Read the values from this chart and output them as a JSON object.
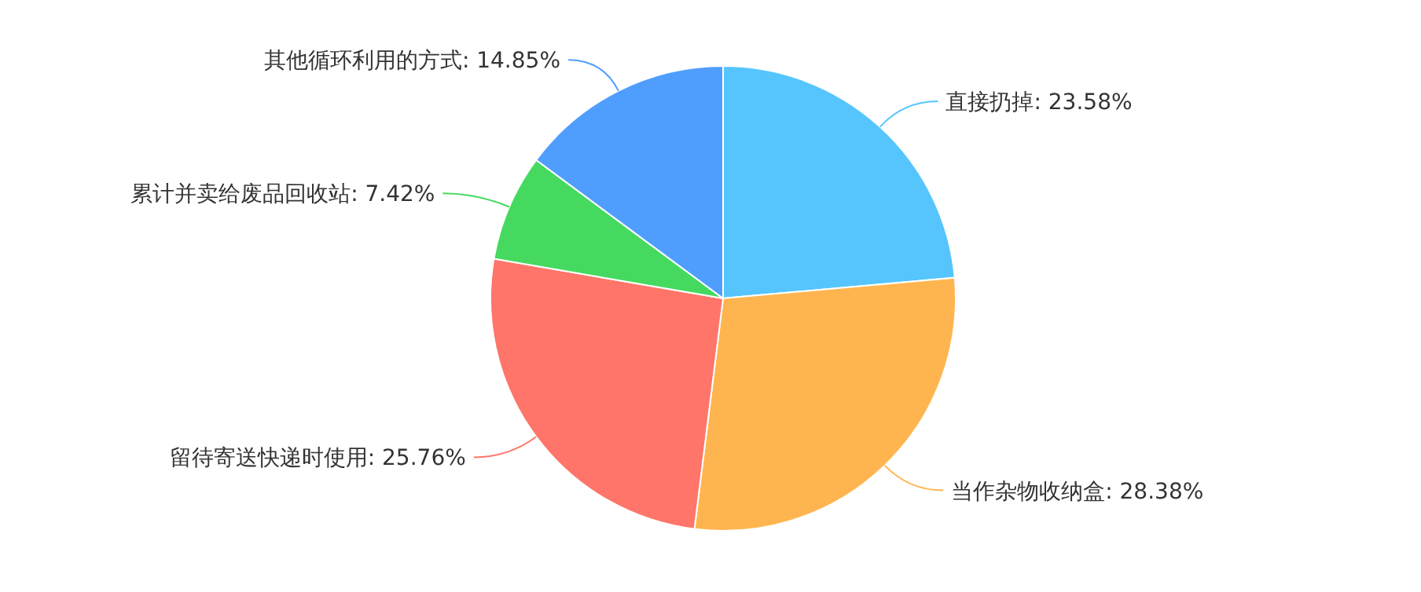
{
  "chart_data": {
    "type": "pie",
    "categories": [
      "直接扔掉",
      "当作杂物收纳盒",
      "留待寄送快递时使用",
      "累计并卖给废品回收站",
      "其他循环利用的方式"
    ],
    "values": [
      23.58,
      28.38,
      25.76,
      7.42,
      14.85
    ],
    "colors": [
      "#56c5fe",
      "#ffb54f",
      "#ff7569",
      "#45da5f",
      "#4f9efe"
    ],
    "value_labels": [
      ": 23.58%",
      ": 28.38%",
      ": 25.76%",
      ": 7.42%",
      ": 14.85%"
    ]
  }
}
